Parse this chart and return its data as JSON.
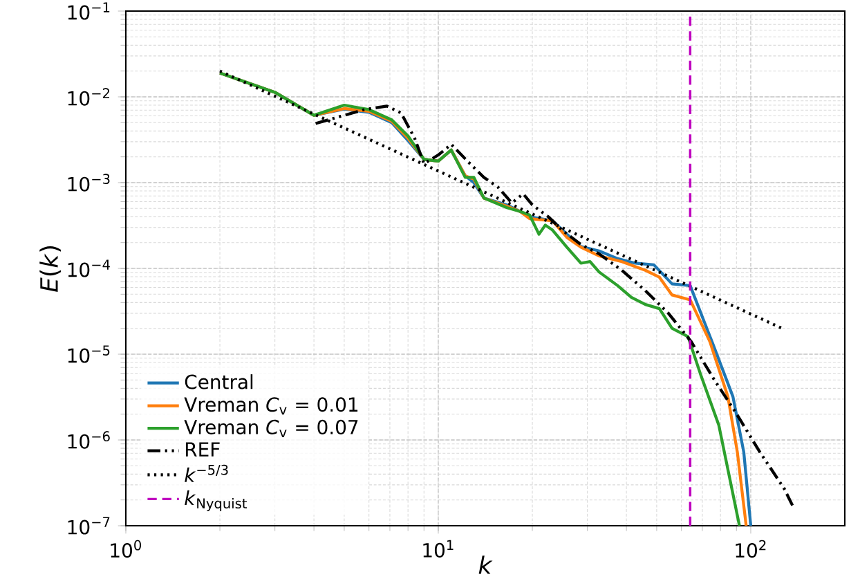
{
  "chart_data": {
    "type": "line",
    "xlabel": "*k*",
    "ylabel": "*E*(*k*)",
    "log": "xy",
    "grid": true,
    "legend": "bottom left",
    "xlim": [
      1,
      200
    ],
    "ylim": [
      1e-07,
      0.1
    ],
    "xticks": [
      {
        "value": 1,
        "label": "10$^{0}$"
      },
      {
        "value": 10,
        "label": "10$^{1}$"
      },
      {
        "value": 100,
        "label": "10$^{2}$"
      }
    ],
    "yticks": [
      {
        "value": 1e-07,
        "label": "10$^{−7}$"
      },
      {
        "value": 1e-06,
        "label": "10$^{−6}$"
      },
      {
        "value": 1e-05,
        "label": "10$^{−5}$"
      },
      {
        "value": 0.0001,
        "label": "10$^{−4}$"
      },
      {
        "value": 0.001,
        "label": "10$^{−3}$"
      },
      {
        "value": 0.01,
        "label": "10$^{−2}$"
      },
      {
        "value": 0.1,
        "label": "10$^{−1}$"
      }
    ],
    "series": [
      {
        "name": "Central",
        "color": "#1f77b4",
        "line_style": "solid",
        "x": [
          2,
          3,
          4,
          5,
          6,
          7.1,
          8,
          9,
          10,
          11,
          12.2,
          13,
          14,
          16.6,
          18.3,
          19.6,
          23.2,
          25.8,
          28.6,
          32.7,
          37.5,
          42.7,
          49,
          56,
          64,
          76,
          87.7,
          95,
          100
        ],
        "values": [
          0.019,
          0.0113,
          0.0061,
          0.0072,
          0.0066,
          0.005,
          0.0031,
          0.00187,
          0.00178,
          0.0024,
          0.0012,
          0.001,
          0.00066,
          0.00055,
          0.00046,
          0.0004,
          0.00036,
          0.00025,
          0.00018,
          0.00016,
          0.00013,
          0.000115,
          0.00011,
          6.6e-05,
          6.3e-05,
          1.26e-05,
          3.2e-06,
          7.2e-07,
          1e-07
        ]
      },
      {
        "name": "Vreman *C*$_{v}$ = 0.01",
        "color": "#ff7f0e",
        "line_style": "solid",
        "x": [
          2,
          3,
          4,
          5,
          6,
          7.1,
          8,
          9,
          10,
          11,
          12.2,
          13,
          14,
          16.6,
          18.3,
          19.6,
          23.2,
          25.8,
          28.6,
          32.7,
          38.7,
          46,
          51,
          56,
          64,
          74,
          84.5,
          90.6,
          96.7
        ],
        "values": [
          0.019,
          0.0113,
          0.0061,
          0.0073,
          0.0068,
          0.0052,
          0.0033,
          0.00187,
          0.00178,
          0.0024,
          0.0012,
          0.0011,
          0.00066,
          0.00053,
          0.00046,
          0.00038,
          0.00036,
          0.00023,
          0.000177,
          0.00014,
          0.00012,
          9.5e-05,
          7.9e-05,
          4.9e-05,
          4.3e-05,
          1.4e-05,
          3.2e-06,
          7.2e-07,
          1e-07
        ]
      },
      {
        "name": "Vreman *C*$_{v}$ = 0.07",
        "color": "#2ca02c",
        "line_style": "solid",
        "x": [
          2,
          3,
          4,
          5,
          6,
          7.1,
          8,
          9,
          10,
          11,
          12.2,
          13,
          14,
          16.6,
          18.3,
          19.6,
          21,
          22,
          23.2,
          25.8,
          28.6,
          30.6,
          32.7,
          37.5,
          41.5,
          46,
          51,
          56,
          63,
          69,
          79,
          92
        ],
        "values": [
          0.019,
          0.0113,
          0.0061,
          0.008,
          0.0071,
          0.0054,
          0.0035,
          0.00187,
          0.00178,
          0.0024,
          0.00115,
          0.00115,
          0.00066,
          0.00051,
          0.00046,
          0.00042,
          0.00025,
          0.00032,
          0.00028,
          0.000177,
          0.000115,
          0.00012,
          9.1e-05,
          6.3e-05,
          4.6e-05,
          3.8e-05,
          3.4e-05,
          2e-05,
          1.6e-05,
          5.9e-06,
          1.5e-06,
          1e-07
        ]
      },
      {
        "name": "REF",
        "color": "#000000",
        "line_style": "dashdot",
        "x": [
          4.05,
          5.8,
          6.85,
          7.6,
          8.4,
          9,
          10,
          11,
          12.4,
          14,
          15.5,
          17.2,
          18.7,
          20,
          22.5,
          24.9,
          28.6,
          32.7,
          38.7,
          46,
          54.5,
          64.5,
          76,
          90.6,
          107,
          128,
          138
        ],
        "values": [
          0.0049,
          0.0071,
          0.0078,
          0.0065,
          0.0033,
          0.00166,
          0.0021,
          0.0028,
          0.00178,
          0.00115,
          0.00089,
          0.00058,
          0.00074,
          0.00055,
          0.0004,
          0.00028,
          0.00019,
          0.000148,
          9.5e-05,
          5.5e-05,
          3e-05,
          1.4e-05,
          5.2e-06,
          1.95e-06,
          7.2e-07,
          2.7e-07,
          1.55e-07
        ]
      },
      {
        "name": "*k*$^{−5/3}$",
        "color": "#000000",
        "line_style": "dotted",
        "x": [
          2,
          128
        ],
        "values": [
          0.02,
          1.95e-05
        ]
      },
      {
        "name": "*k*$_{Nyquist}$",
        "color": "#bf00bf",
        "line_style": "dashed",
        "x": [
          64,
          64
        ],
        "values": [
          1e-07,
          0.1
        ]
      }
    ]
  }
}
